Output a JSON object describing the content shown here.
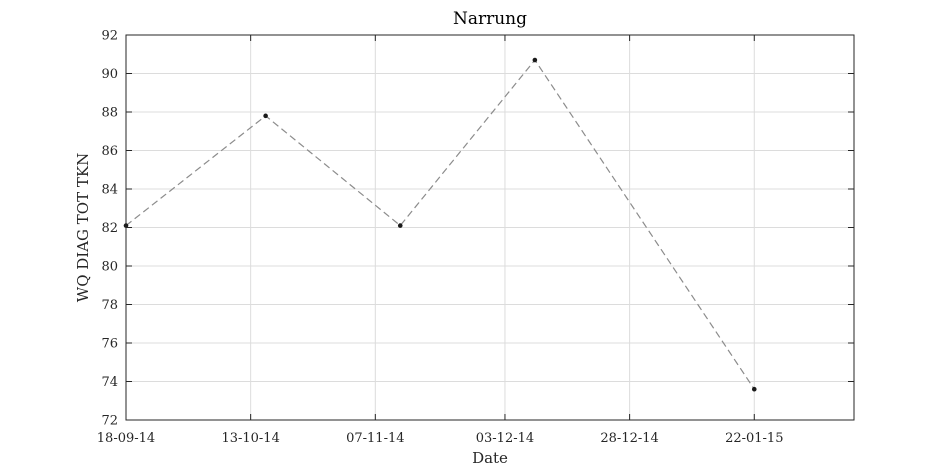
{
  "chart_data": {
    "type": "line",
    "title": "Narrung",
    "xlabel": "Date",
    "ylabel": "WQ DIAG TOT TKN",
    "x_ticks": [
      "18-09-14",
      "13-10-14",
      "07-11-14",
      "03-12-14",
      "28-12-14",
      "22-01-15"
    ],
    "x_tick_dates": [
      "2014-09-18",
      "2014-10-13",
      "2014-11-07",
      "2014-12-03",
      "2014-12-28",
      "2015-01-22"
    ],
    "xlim": [
      "2014-09-18",
      "2015-02-11"
    ],
    "ylim": [
      72,
      92
    ],
    "y_ticks": [
      72,
      74,
      76,
      78,
      80,
      82,
      84,
      86,
      88,
      90,
      92
    ],
    "grid": true,
    "series": [
      {
        "x": [
          "2014-09-18",
          "2014-10-16",
          "2014-11-12",
          "2014-12-09",
          "2015-01-22"
        ],
        "y": [
          82.1,
          87.8,
          82.1,
          90.7,
          73.6
        ],
        "line_style": "dashed",
        "line_color": "#8c8c8c",
        "marker_color": "#1a1a1a"
      }
    ]
  }
}
